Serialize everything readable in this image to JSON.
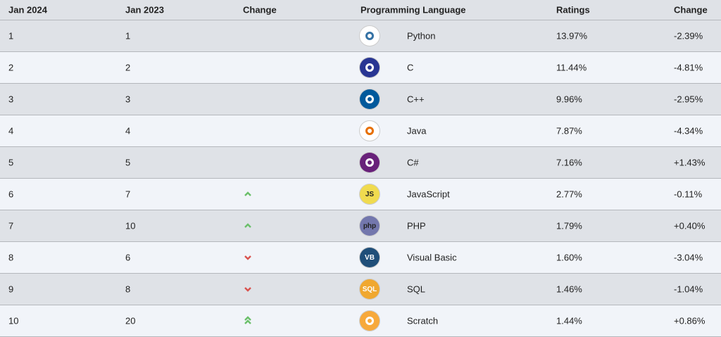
{
  "table": {
    "headers": [
      "Jan 2024",
      "Jan 2023",
      "Change",
      "Programming Language",
      "Ratings",
      "Change"
    ],
    "rows": [
      {
        "rank": "1",
        "prev": "1",
        "language": "Python",
        "rating": "13.97%",
        "change": "-2.39%",
        "icon": {
          "bg": "#ffffff",
          "fg": "#3572a5"
        }
      },
      {
        "rank": "2",
        "prev": "2",
        "language": "C",
        "rating": "11.44%",
        "change": "-4.81%",
        "icon": {
          "bg": "#283593",
          "fg": "#ffffff"
        }
      },
      {
        "rank": "3",
        "prev": "3",
        "language": "C++",
        "rating": "9.96%",
        "change": "-2.95%",
        "icon": {
          "bg": "#00599c",
          "fg": "#ffffff"
        }
      },
      {
        "rank": "4",
        "prev": "4",
        "language": "Java",
        "rating": "7.87%",
        "change": "-4.34%",
        "icon": {
          "bg": "#ffffff",
          "fg": "#e76f00"
        }
      },
      {
        "rank": "5",
        "prev": "5",
        "language": "C#",
        "rating": "7.16%",
        "change": "+1.43%",
        "icon": {
          "bg": "#68217a",
          "fg": "#ffffff"
        }
      },
      {
        "rank": "6",
        "prev": "7",
        "trend": "up",
        "language": "JavaScript",
        "rating": "2.77%",
        "change": "-0.11%",
        "icon": {
          "bg": "#f0db4f",
          "fg": "#222222",
          "text": "JS"
        }
      },
      {
        "rank": "7",
        "prev": "10",
        "trend": "up",
        "language": "PHP",
        "rating": "1.79%",
        "change": "+0.40%",
        "icon": {
          "bg": "#7377ad",
          "fg": "#222222",
          "text": "php"
        }
      },
      {
        "rank": "8",
        "prev": "6",
        "trend": "down",
        "language": "Visual Basic",
        "rating": "1.60%",
        "change": "-3.04%",
        "icon": {
          "bg": "#1f4e79",
          "fg": "#ffffff",
          "text": "VB"
        }
      },
      {
        "rank": "9",
        "prev": "8",
        "trend": "down",
        "language": "SQL",
        "rating": "1.46%",
        "change": "-1.04%",
        "icon": {
          "bg": "#f0a830",
          "fg": "#ffffff",
          "text": "SQL"
        }
      },
      {
        "rank": "10",
        "prev": "20",
        "trend": "double-up",
        "language": "Scratch",
        "rating": "1.44%",
        "change": "+0.86%",
        "icon": {
          "bg": "#f7a93b",
          "fg": "#ffffff"
        }
      }
    ]
  }
}
